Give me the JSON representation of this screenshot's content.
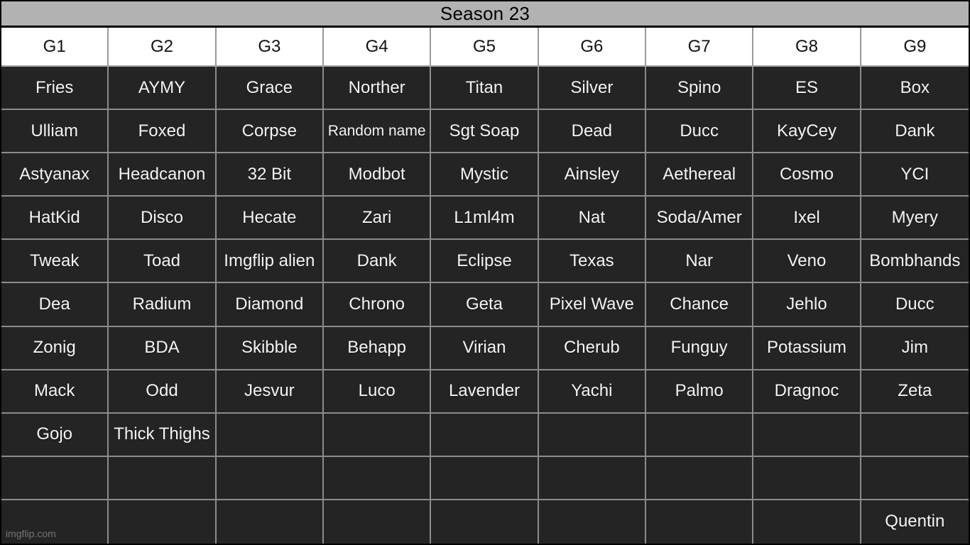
{
  "title": "Season 23",
  "watermark": "imgflip.com",
  "columns": [
    "G1",
    "G2",
    "G3",
    "G4",
    "G5",
    "G6",
    "G7",
    "G8",
    "G9"
  ],
  "rows": [
    [
      "Fries",
      "AYMY",
      "Grace",
      "Norther",
      "Titan",
      "Silver",
      "Spino",
      "ES",
      "Box"
    ],
    [
      "Ulliam",
      "Foxed",
      "Corpse",
      "Random name",
      "Sgt Soap",
      "Dead",
      "Ducc",
      "KayCey",
      "Dank"
    ],
    [
      "Astyanax",
      "Headcanon",
      "32 Bit",
      "Modbot",
      "Mystic",
      "Ainsley",
      "Aethereal",
      "Cosmo",
      "YCI"
    ],
    [
      "HatKid",
      "Disco",
      "Hecate",
      "Zari",
      "L1ml4m",
      "Nat",
      "Soda/Amer",
      "Ixel",
      "Myery"
    ],
    [
      "Tweak",
      "Toad",
      "Imgflip alien",
      "Dank",
      "Eclipse",
      "Texas",
      "Nar",
      "Veno",
      "Bombhands"
    ],
    [
      "Dea",
      "Radium",
      "Diamond",
      "Chrono",
      "Geta",
      "Pixel Wave",
      "Chance",
      "Jehlo",
      "Ducc"
    ],
    [
      "Zonig",
      "BDA",
      "Skibble",
      "Behapp",
      "Virian",
      "Cherub",
      "Funguy",
      "Potassium",
      "Jim"
    ],
    [
      "Mack",
      "Odd",
      "Jesvur",
      "Luco",
      "Lavender",
      "Yachi",
      "Palmo",
      "Dragnoc",
      "Zeta"
    ],
    [
      "Gojo",
      "Thick Thighs",
      "",
      "",
      "",
      "",
      "",
      "",
      ""
    ],
    [
      "",
      "",
      "",
      "",
      "",
      "",
      "",
      "",
      ""
    ],
    [
      "",
      "",
      "",
      "",
      "",
      "",
      "",
      "",
      "Quentin"
    ]
  ],
  "colors": {
    "title_bg": "#b2b2b2",
    "header_bg": "#ffffff",
    "cell_bg": "#242424",
    "cell_text": "#f4f4f4",
    "grid_border": "#8c8c8c",
    "outer_border": "#000000"
  },
  "chart_data": {
    "type": "table",
    "title": "Season 23",
    "columns": [
      "G1",
      "G2",
      "G3",
      "G4",
      "G5",
      "G6",
      "G7",
      "G8",
      "G9"
    ],
    "rows": [
      [
        "Fries",
        "AYMY",
        "Grace",
        "Norther",
        "Titan",
        "Silver",
        "Spino",
        "ES",
        "Box"
      ],
      [
        "Ulliam",
        "Foxed",
        "Corpse",
        "Random name",
        "Sgt Soap",
        "Dead",
        "Ducc",
        "KayCey",
        "Dank"
      ],
      [
        "Astyanax",
        "Headcanon",
        "32 Bit",
        "Modbot",
        "Mystic",
        "Ainsley",
        "Aethereal",
        "Cosmo",
        "YCI"
      ],
      [
        "HatKid",
        "Disco",
        "Hecate",
        "Zari",
        "L1ml4m",
        "Nat",
        "Soda/Amer",
        "Ixel",
        "Myery"
      ],
      [
        "Tweak",
        "Toad",
        "Imgflip alien",
        "Dank",
        "Eclipse",
        "Texas",
        "Nar",
        "Veno",
        "Bombhands"
      ],
      [
        "Dea",
        "Radium",
        "Diamond",
        "Chrono",
        "Geta",
        "Pixel Wave",
        "Chance",
        "Jehlo",
        "Ducc"
      ],
      [
        "Zonig",
        "BDA",
        "Skibble",
        "Behapp",
        "Virian",
        "Cherub",
        "Funguy",
        "Potassium",
        "Jim"
      ],
      [
        "Mack",
        "Odd",
        "Jesvur",
        "Luco",
        "Lavender",
        "Yachi",
        "Palmo",
        "Dragnoc",
        "Zeta"
      ],
      [
        "Gojo",
        "Thick Thighs",
        "",
        "",
        "",
        "",
        "",
        "",
        ""
      ],
      [
        "",
        "",
        "",
        "",
        "",
        "",
        "",
        "",
        ""
      ],
      [
        "",
        "",
        "",
        "",
        "",
        "",
        "",
        "",
        "Quentin"
      ]
    ]
  }
}
